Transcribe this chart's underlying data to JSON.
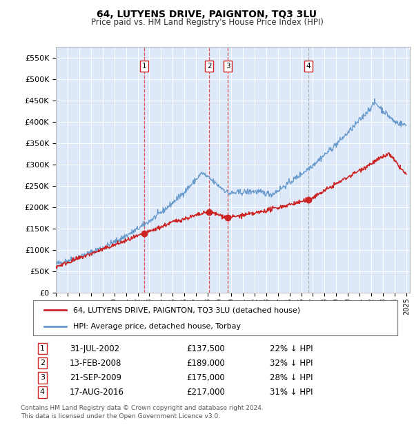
{
  "title": "64, LUTYENS DRIVE, PAIGNTON, TQ3 3LU",
  "subtitle": "Price paid vs. HM Land Registry's House Price Index (HPI)",
  "ylim": [
    0,
    575000
  ],
  "yticks": [
    0,
    50000,
    100000,
    150000,
    200000,
    250000,
    300000,
    350000,
    400000,
    450000,
    500000,
    550000
  ],
  "ytick_labels": [
    "£0",
    "£50K",
    "£100K",
    "£150K",
    "£200K",
    "£250K",
    "£300K",
    "£350K",
    "£400K",
    "£450K",
    "£500K",
    "£550K"
  ],
  "plot_bg_color": "#dde8f8",
  "hpi_color": "#6699cc",
  "price_color": "#cc2222",
  "vline_color_red": "#dd4444",
  "vline_color_gray": "#aaaaaa",
  "transactions": [
    {
      "label": "1",
      "date_str": "31-JUL-2002",
      "price": 137500,
      "pct": "22%",
      "x_year": 2002.58,
      "vline_red": true
    },
    {
      "label": "2",
      "date_str": "13-FEB-2008",
      "price": 189000,
      "pct": "32%",
      "x_year": 2008.12,
      "vline_red": true
    },
    {
      "label": "3",
      "date_str": "21-SEP-2009",
      "price": 175000,
      "pct": "28%",
      "x_year": 2009.72,
      "vline_red": true
    },
    {
      "label": "4",
      "date_str": "17-AUG-2016",
      "price": 217000,
      "pct": "31%",
      "x_year": 2016.63,
      "vline_red": false
    }
  ],
  "legend_entries": [
    {
      "label": "64, LUTYENS DRIVE, PAIGNTON, TQ3 3LU (detached house)",
      "color": "#cc2222"
    },
    {
      "label": "HPI: Average price, detached house, Torbay",
      "color": "#6699cc"
    }
  ],
  "footer": "Contains HM Land Registry data © Crown copyright and database right 2024.\nThis data is licensed under the Open Government Licence v3.0.",
  "table_rows": [
    [
      "1",
      "31-JUL-2002",
      "£137,500",
      "22% ↓ HPI"
    ],
    [
      "2",
      "13-FEB-2008",
      "£189,000",
      "32% ↓ HPI"
    ],
    [
      "3",
      "21-SEP-2009",
      "£175,000",
      "28% ↓ HPI"
    ],
    [
      "4",
      "17-AUG-2016",
      "£217,000",
      "31% ↓ HPI"
    ]
  ],
  "xmin": 1995,
  "xmax": 2025.3
}
